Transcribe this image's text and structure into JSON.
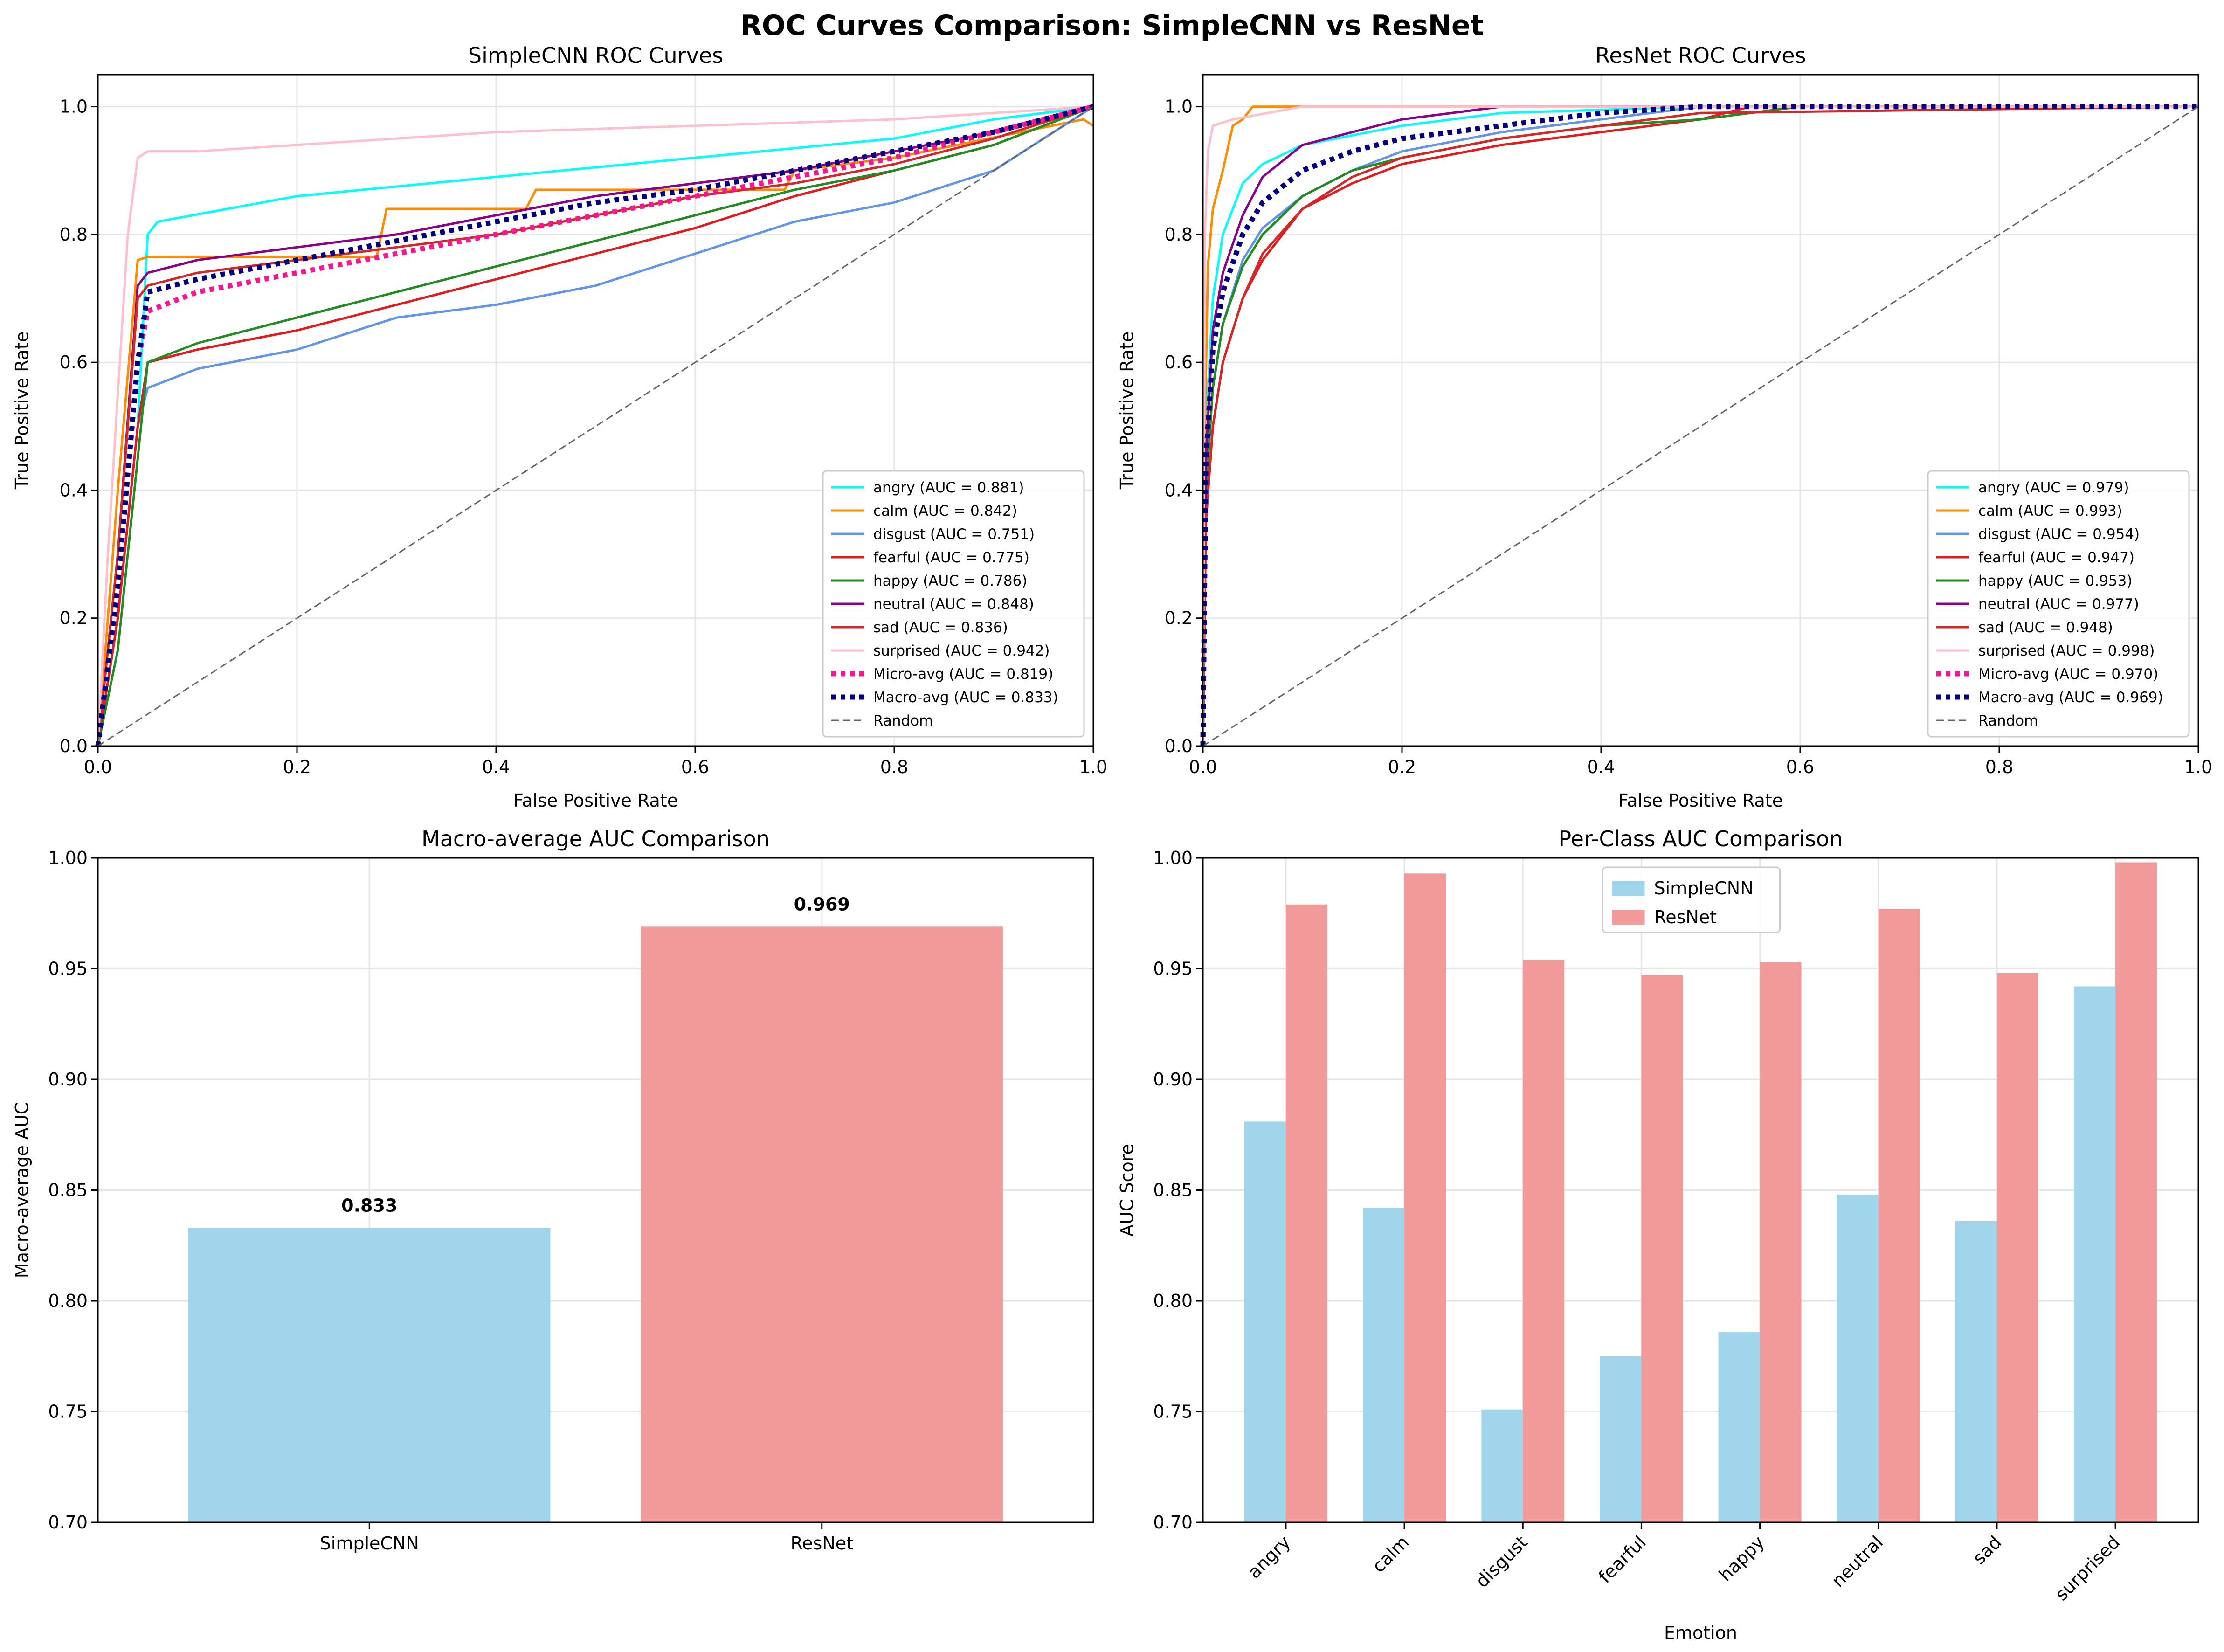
{
  "figure_title": "ROC Curves Comparison: SimpleCNN vs ResNet",
  "chart_data": [
    {
      "type": "line",
      "title": "SimpleCNN ROC Curves",
      "xlabel": "False Positive Rate",
      "ylabel": "True Positive Rate",
      "xlim": [
        0,
        1
      ],
      "ylim": [
        0,
        1.05
      ],
      "xticks": [
        "0.0",
        "0.2",
        "0.4",
        "0.6",
        "0.8",
        "1.0"
      ],
      "yticks": [
        "0.0",
        "0.2",
        "0.4",
        "0.6",
        "0.8",
        "1.0"
      ],
      "grid": true,
      "legend_position": "lower-right",
      "series": [
        {
          "name": "angry (AUC = 0.881)",
          "color": "#00ffff",
          "style": "solid",
          "x": [
            0,
            0.02,
            0.04,
            0.05,
            0.06,
            0.2,
            0.4,
            0.6,
            0.8,
            0.9,
            1.0
          ],
          "y": [
            0,
            0.2,
            0.5,
            0.8,
            0.82,
            0.86,
            0.89,
            0.92,
            0.95,
            0.98,
            1.0
          ]
        },
        {
          "name": "calm (AUC = 0.842)",
          "color": "#ff8c00",
          "style": "solid",
          "x": [
            0,
            0.02,
            0.04,
            0.05,
            0.28,
            0.29,
            0.43,
            0.44,
            0.69,
            0.7,
            0.8,
            0.99,
            1.0
          ],
          "y": [
            0,
            0.4,
            0.76,
            0.765,
            0.765,
            0.84,
            0.84,
            0.87,
            0.87,
            0.9,
            0.92,
            0.98,
            0.97
          ]
        },
        {
          "name": "disgust (AUC = 0.751)",
          "color": "#6495ed",
          "style": "solid",
          "x": [
            0,
            0.02,
            0.04,
            0.05,
            0.1,
            0.2,
            0.3,
            0.4,
            0.5,
            0.6,
            0.7,
            0.8,
            0.9,
            1.0
          ],
          "y": [
            0,
            0.2,
            0.5,
            0.56,
            0.59,
            0.62,
            0.67,
            0.69,
            0.72,
            0.77,
            0.82,
            0.85,
            0.9,
            1.0
          ]
        },
        {
          "name": "fearful (AUC = 0.775)",
          "color": "#e41a1c",
          "style": "solid",
          "x": [
            0,
            0.02,
            0.04,
            0.05,
            0.1,
            0.2,
            0.3,
            0.4,
            0.5,
            0.6,
            0.7,
            0.8,
            0.9,
            1.0
          ],
          "y": [
            0,
            0.2,
            0.5,
            0.6,
            0.62,
            0.65,
            0.69,
            0.73,
            0.77,
            0.81,
            0.86,
            0.9,
            0.94,
            1.0
          ]
        },
        {
          "name": "happy (AUC = 0.786)",
          "color": "#228b22",
          "style": "solid",
          "x": [
            0,
            0.02,
            0.04,
            0.05,
            0.1,
            0.2,
            0.3,
            0.4,
            0.5,
            0.6,
            0.7,
            0.8,
            0.9,
            1.0
          ],
          "y": [
            0,
            0.15,
            0.45,
            0.6,
            0.63,
            0.67,
            0.71,
            0.75,
            0.79,
            0.83,
            0.87,
            0.9,
            0.94,
            1.0
          ]
        },
        {
          "name": "neutral (AUC = 0.848)",
          "color": "#8b008b",
          "style": "solid",
          "x": [
            0,
            0.02,
            0.04,
            0.05,
            0.1,
            0.2,
            0.3,
            0.4,
            0.5,
            0.6,
            0.7,
            0.8,
            0.9,
            1.0
          ],
          "y": [
            0,
            0.3,
            0.72,
            0.74,
            0.76,
            0.78,
            0.8,
            0.83,
            0.86,
            0.88,
            0.9,
            0.93,
            0.96,
            1.0
          ]
        },
        {
          "name": "sad (AUC = 0.836)",
          "color": "#d62728",
          "style": "solid",
          "x": [
            0,
            0.02,
            0.04,
            0.05,
            0.1,
            0.2,
            0.3,
            0.4,
            0.5,
            0.6,
            0.7,
            0.8,
            0.9,
            1.0
          ],
          "y": [
            0,
            0.3,
            0.7,
            0.72,
            0.74,
            0.76,
            0.78,
            0.8,
            0.83,
            0.86,
            0.88,
            0.91,
            0.95,
            1.0
          ]
        },
        {
          "name": "surprised (AUC = 0.942)",
          "color": "#ffc0cb",
          "style": "solid",
          "x": [
            0,
            0.01,
            0.03,
            0.04,
            0.05,
            0.1,
            0.2,
            0.3,
            0.4,
            0.6,
            0.8,
            0.9,
            1.0
          ],
          "y": [
            0,
            0.3,
            0.8,
            0.92,
            0.93,
            0.93,
            0.94,
            0.95,
            0.96,
            0.97,
            0.98,
            0.99,
            1.0
          ]
        },
        {
          "name": "Micro-avg (AUC = 0.819)",
          "color": "#ff1493",
          "style": "dotted",
          "x": [
            0,
            0.02,
            0.04,
            0.05,
            0.1,
            0.2,
            0.3,
            0.4,
            0.5,
            0.6,
            0.7,
            0.8,
            0.9,
            1.0
          ],
          "y": [
            0,
            0.25,
            0.6,
            0.68,
            0.71,
            0.74,
            0.77,
            0.8,
            0.83,
            0.86,
            0.89,
            0.92,
            0.96,
            1.0
          ]
        },
        {
          "name": "Macro-avg (AUC = 0.833)",
          "color": "#000080",
          "style": "dotted",
          "x": [
            0,
            0.02,
            0.04,
            0.05,
            0.1,
            0.2,
            0.3,
            0.4,
            0.5,
            0.6,
            0.7,
            0.8,
            0.9,
            1.0
          ],
          "y": [
            0,
            0.25,
            0.6,
            0.71,
            0.73,
            0.76,
            0.79,
            0.82,
            0.85,
            0.87,
            0.9,
            0.93,
            0.96,
            1.0
          ]
        },
        {
          "name": "Random",
          "color": "#666666",
          "style": "dashed",
          "x": [
            0,
            1
          ],
          "y": [
            0,
            1
          ]
        }
      ]
    },
    {
      "type": "line",
      "title": "ResNet ROC Curves",
      "xlabel": "False Positive Rate",
      "ylabel": "True Positive Rate",
      "xlim": [
        0,
        1
      ],
      "ylim": [
        0,
        1.05
      ],
      "xticks": [
        "0.0",
        "0.2",
        "0.4",
        "0.6",
        "0.8",
        "1.0"
      ],
      "yticks": [
        "0.0",
        "0.2",
        "0.4",
        "0.6",
        "0.8",
        "1.0"
      ],
      "grid": true,
      "legend_position": "lower-right",
      "series": [
        {
          "name": "angry (AUC = 0.979)",
          "color": "#00ffff",
          "style": "solid",
          "x": [
            0,
            0.003,
            0.01,
            0.02,
            0.04,
            0.06,
            0.1,
            0.2,
            0.3,
            0.5,
            1.0
          ],
          "y": [
            0,
            0.5,
            0.7,
            0.8,
            0.88,
            0.91,
            0.94,
            0.97,
            0.99,
            1.0,
            1.0
          ]
        },
        {
          "name": "calm (AUC = 0.993)",
          "color": "#ff8c00",
          "style": "solid",
          "x": [
            0,
            0.002,
            0.005,
            0.01,
            0.02,
            0.03,
            0.04,
            0.05,
            0.2,
            1.0
          ],
          "y": [
            0,
            0.5,
            0.75,
            0.84,
            0.9,
            0.97,
            0.98,
            1.0,
            1.0,
            1.0
          ]
        },
        {
          "name": "disgust (AUC = 0.954)",
          "color": "#6495ed",
          "style": "solid",
          "x": [
            0,
            0.003,
            0.01,
            0.02,
            0.04,
            0.06,
            0.1,
            0.15,
            0.2,
            0.3,
            0.5,
            1.0
          ],
          "y": [
            0,
            0.4,
            0.56,
            0.66,
            0.76,
            0.81,
            0.86,
            0.9,
            0.93,
            0.96,
            1.0,
            1.0
          ]
        },
        {
          "name": "fearful (AUC = 0.947)",
          "color": "#e41a1c",
          "style": "solid",
          "x": [
            0,
            0.003,
            0.01,
            0.02,
            0.04,
            0.06,
            0.1,
            0.15,
            0.2,
            0.3,
            0.4,
            0.5,
            0.55,
            1.0
          ],
          "y": [
            0,
            0.35,
            0.5,
            0.6,
            0.7,
            0.76,
            0.84,
            0.88,
            0.91,
            0.94,
            0.96,
            0.98,
            1.0,
            1.0
          ]
        },
        {
          "name": "happy (AUC = 0.953)",
          "color": "#228b22",
          "style": "solid",
          "x": [
            0,
            0.003,
            0.01,
            0.02,
            0.04,
            0.06,
            0.1,
            0.15,
            0.2,
            0.3,
            0.4,
            0.5,
            0.6,
            1.0
          ],
          "y": [
            0,
            0.4,
            0.56,
            0.66,
            0.75,
            0.8,
            0.86,
            0.9,
            0.92,
            0.95,
            0.97,
            0.98,
            1.0,
            1.0
          ]
        },
        {
          "name": "neutral (AUC = 0.977)",
          "color": "#8b008b",
          "style": "solid",
          "x": [
            0,
            0.003,
            0.01,
            0.02,
            0.04,
            0.06,
            0.1,
            0.15,
            0.2,
            0.3,
            1.0
          ],
          "y": [
            0,
            0.45,
            0.65,
            0.74,
            0.83,
            0.89,
            0.94,
            0.96,
            0.98,
            1.0,
            1.0
          ]
        },
        {
          "name": "sad (AUC = 0.948)",
          "color": "#d62728",
          "style": "solid",
          "x": [
            0,
            0.003,
            0.01,
            0.02,
            0.04,
            0.06,
            0.1,
            0.15,
            0.2,
            0.3,
            0.4,
            0.5,
            1.0
          ],
          "y": [
            0,
            0.35,
            0.5,
            0.6,
            0.7,
            0.77,
            0.84,
            0.89,
            0.92,
            0.95,
            0.97,
            0.99,
            1.0
          ]
        },
        {
          "name": "surprised (AUC = 0.998)",
          "color": "#ffc0cb",
          "style": "solid",
          "x": [
            0,
            0.002,
            0.005,
            0.01,
            0.03,
            0.1,
            1.0
          ],
          "y": [
            0,
            0.8,
            0.93,
            0.97,
            0.98,
            1.0,
            1.0
          ]
        },
        {
          "name": "Micro-avg (AUC = 0.970)",
          "color": "#ff1493",
          "style": "dotted",
          "x": [
            0,
            0.003,
            0.01,
            0.02,
            0.04,
            0.06,
            0.1,
            0.15,
            0.2,
            0.3,
            0.4,
            0.5,
            1.0
          ],
          "y": [
            0,
            0.45,
            0.62,
            0.71,
            0.8,
            0.85,
            0.9,
            0.93,
            0.95,
            0.97,
            0.99,
            1.0,
            1.0
          ]
        },
        {
          "name": "Macro-avg (AUC = 0.969)",
          "color": "#000080",
          "style": "dotted",
          "x": [
            0,
            0.003,
            0.01,
            0.02,
            0.04,
            0.06,
            0.1,
            0.15,
            0.2,
            0.3,
            0.4,
            0.5,
            1.0
          ],
          "y": [
            0,
            0.45,
            0.62,
            0.71,
            0.8,
            0.85,
            0.9,
            0.93,
            0.95,
            0.97,
            0.99,
            1.0,
            1.0
          ]
        },
        {
          "name": "Random",
          "color": "#666666",
          "style": "dashed",
          "x": [
            0,
            1
          ],
          "y": [
            0,
            1
          ]
        }
      ]
    },
    {
      "type": "bar",
      "title": "Macro-average AUC Comparison",
      "xlabel": "",
      "ylabel": "Macro-average AUC",
      "categories": [
        "SimpleCNN",
        "ResNet"
      ],
      "values": [
        0.833,
        0.969
      ],
      "value_labels": [
        "0.833",
        "0.969"
      ],
      "colors": [
        "#a0d6ec",
        "#f29a9a"
      ],
      "ylim": [
        0.7,
        1.0
      ],
      "yticks": [
        "0.70",
        "0.75",
        "0.80",
        "0.85",
        "0.90",
        "0.95",
        "1.00"
      ],
      "grid": true
    },
    {
      "type": "bar",
      "title": "Per-Class AUC Comparison",
      "xlabel": "Emotion",
      "ylabel": "AUC Score",
      "categories": [
        "angry",
        "calm",
        "disgust",
        "fearful",
        "happy",
        "neutral",
        "sad",
        "surprised"
      ],
      "series": [
        {
          "name": "SimpleCNN",
          "color": "#a0d6ec",
          "values": [
            0.881,
            0.842,
            0.751,
            0.775,
            0.786,
            0.848,
            0.836,
            0.942
          ]
        },
        {
          "name": "ResNet",
          "color": "#f29a9a",
          "values": [
            0.979,
            0.993,
            0.954,
            0.947,
            0.953,
            0.977,
            0.948,
            0.998
          ]
        }
      ],
      "ylim": [
        0.7,
        1.0
      ],
      "yticks": [
        "0.70",
        "0.75",
        "0.80",
        "0.85",
        "0.90",
        "0.95",
        "1.00"
      ],
      "grid": true,
      "legend_position": "upper-center"
    }
  ]
}
